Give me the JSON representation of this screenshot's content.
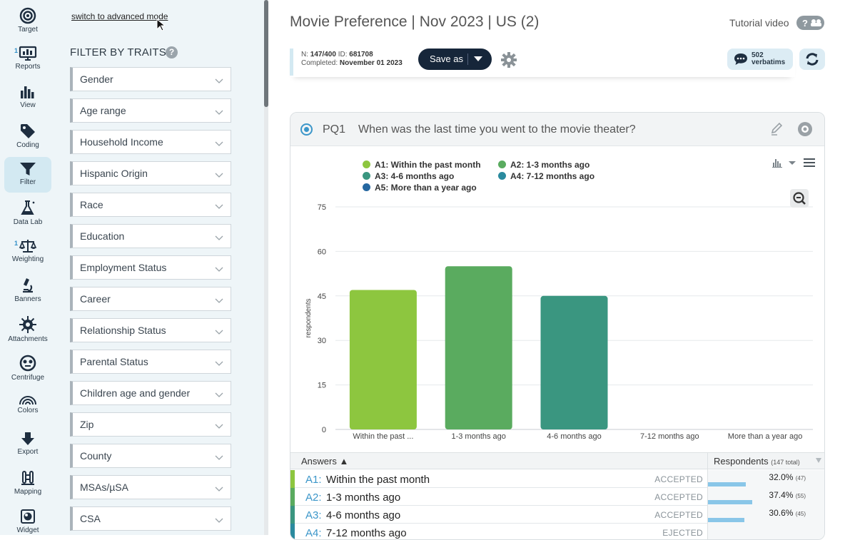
{
  "nav": {
    "items": [
      {
        "label": "Target",
        "icon": "target-icon"
      },
      {
        "label": "Reports",
        "icon": "reports-icon",
        "badge": "1"
      },
      {
        "label": "View",
        "icon": "bar-chart-icon"
      },
      {
        "label": "Coding",
        "icon": "tag-icon"
      },
      {
        "label": "Filter",
        "icon": "funnel-icon",
        "active": true
      },
      {
        "label": "Data Lab",
        "icon": "flask-icon"
      },
      {
        "label": "Weighting",
        "icon": "scale-icon",
        "badge": "1"
      },
      {
        "label": "Banners",
        "icon": "microscope-icon"
      },
      {
        "label": "Attachments",
        "icon": "attachment-icon"
      },
      {
        "label": "Centrifuge",
        "icon": "centrifuge-icon"
      },
      {
        "label": "Colors",
        "icon": "rainbow-icon"
      },
      {
        "label": "Export",
        "icon": "download-icon"
      },
      {
        "label": "Mapping",
        "icon": "mapping-icon"
      },
      {
        "label": "Widget",
        "icon": "widget-icon"
      }
    ]
  },
  "filter_panel": {
    "advanced_link": "switch to advanced mode",
    "title": "FILTER BY TRAITS",
    "help": "?",
    "traits": [
      "Gender",
      "Age range",
      "Household Income",
      "Hispanic Origin",
      "Race",
      "Education",
      "Employment Status",
      "Career",
      "Relationship Status",
      "Parental Status",
      "Children age and gender",
      "Zip",
      "County",
      "MSAs/µSA",
      "CSA"
    ]
  },
  "header": {
    "title": "Movie Preference | Nov 2023 | US (2)",
    "tutorial": "Tutorial video"
  },
  "info": {
    "n_label": "N:",
    "n_value": "147/400",
    "id_label": "ID:",
    "id_value": "681708",
    "completed_label": "Completed:",
    "completed_value": "November 01 2023",
    "save_as": "Save as",
    "verbatims_count": "502",
    "verbatims_label": "verbatims"
  },
  "question": {
    "id": "PQ1",
    "text": "When was the last time you went to the movie theater?"
  },
  "chart_data": {
    "type": "bar",
    "categories": [
      "Within the past ...",
      "1-3 months ago",
      "4-6 months ago",
      "7-12 months ago",
      "More than a year ago"
    ],
    "values": [
      47,
      55,
      45,
      0,
      0
    ],
    "colors": [
      "#8dc63f",
      "#5aab5f",
      "#3a9680",
      "#2a8a9e",
      "#2567a0"
    ],
    "ylabel": "respondents",
    "ylim": [
      0,
      75
    ],
    "yticks": [
      0,
      15,
      30,
      45,
      60,
      75
    ],
    "grid": true,
    "legend": [
      {
        "label": "A1: Within the past month",
        "color": "#8dc63f"
      },
      {
        "label": "A2: 1-3 months ago",
        "color": "#5aab5f"
      },
      {
        "label": "A3: 4-6 months ago",
        "color": "#3a9680"
      },
      {
        "label": "A4: 7-12 months ago",
        "color": "#2a8a9e"
      },
      {
        "label": "A5: More than a year ago",
        "color": "#2567a0"
      }
    ]
  },
  "answers": {
    "header": "Answers ▲",
    "resp_header": "Respondents",
    "resp_total": "(147 total)",
    "rows": [
      {
        "code": "A1:",
        "text": "Within the past month",
        "status": "ACCEPTED",
        "pct": "32.0%",
        "count": "(47)",
        "fraction": 0.32,
        "color": "#8dc63f"
      },
      {
        "code": "A2:",
        "text": "1-3 months ago",
        "status": "ACCEPTED",
        "pct": "37.4%",
        "count": "(55)",
        "fraction": 0.374,
        "color": "#5aab5f"
      },
      {
        "code": "A3:",
        "text": "4-6 months ago",
        "status": "ACCEPTED",
        "pct": "30.6%",
        "count": "(45)",
        "fraction": 0.306,
        "color": "#3a9680"
      },
      {
        "code": "A4:",
        "text": "7-12 months ago",
        "status": "EJECTED",
        "pct": "",
        "count": "",
        "fraction": 0,
        "color": "#2a8a9e"
      }
    ]
  }
}
